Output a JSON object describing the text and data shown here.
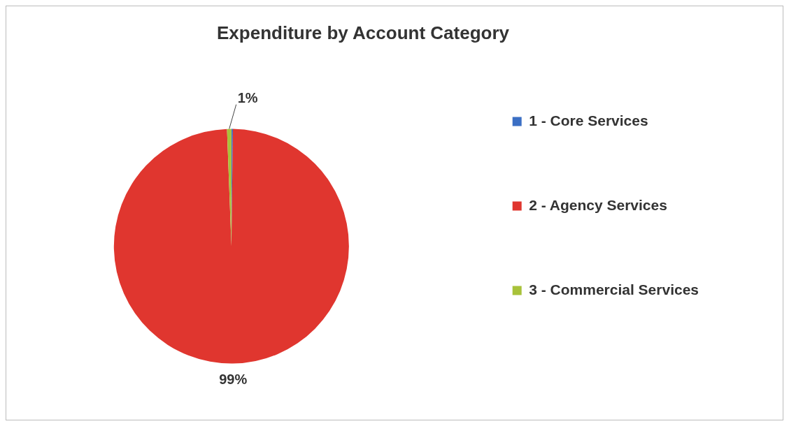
{
  "chart_data": {
    "type": "pie",
    "title": "Expenditure by Account Category",
    "categories": [
      "1 - Core Services",
      "2 - Agency Services",
      "3 - Commercial Services"
    ],
    "values": [
      0.2,
      99.2,
      0.6
    ],
    "colors": [
      "#3b6fc4",
      "#e0362f",
      "#a8c23a"
    ],
    "value_labels": [
      null,
      "99%",
      "1%"
    ],
    "legend": "right"
  }
}
